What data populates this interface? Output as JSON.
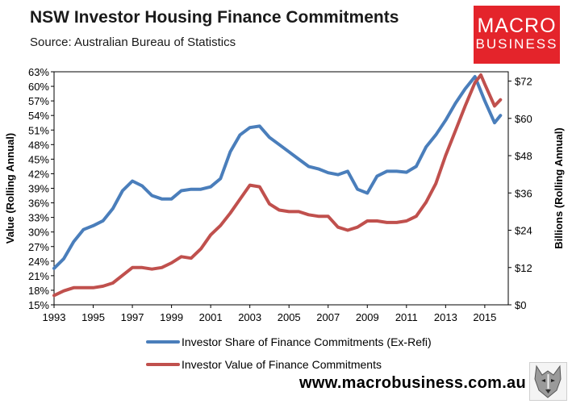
{
  "header": {
    "title": "NSW Investor Housing Finance Commitments",
    "subtitle": "Source: Australian Bureau of Statistics"
  },
  "logo": {
    "line1": "MACRO",
    "line2": "BUSINESS",
    "color": "#e4242b"
  },
  "footer": {
    "website": "www.macrobusiness.com.au"
  },
  "chart_data": {
    "type": "line",
    "title": "NSW Investor Housing Finance Commitments",
    "ylabel_left": "Value (Rolling Annual)",
    "ylabel_right": "Billions (Rolling Annual)",
    "xlim": [
      1993,
      2016.2
    ],
    "ylim_left": [
      15,
      63
    ],
    "ylim_right": [
      0,
      75
    ],
    "x_ticks": [
      1993,
      1995,
      1997,
      1999,
      2001,
      2003,
      2005,
      2007,
      2009,
      2011,
      2013,
      2015
    ],
    "x_tick_labels": [
      "1993",
      "1995",
      "1997",
      "1999",
      "2001",
      "2003",
      "2005",
      "2007",
      "2009",
      "2011",
      "2013",
      "2015"
    ],
    "y_left_ticks": [
      15,
      18,
      21,
      24,
      27,
      30,
      33,
      36,
      39,
      42,
      45,
      48,
      51,
      54,
      57,
      60,
      63
    ],
    "y_left_tick_labels": [
      "15%",
      "18%",
      "21%",
      "24%",
      "27%",
      "30%",
      "33%",
      "36%",
      "39%",
      "42%",
      "45%",
      "48%",
      "51%",
      "54%",
      "57%",
      "60%",
      "63%"
    ],
    "y_right_ticks": [
      0,
      12,
      24,
      36,
      48,
      60,
      72
    ],
    "y_right_tick_labels": [
      "$0",
      "$12",
      "$24",
      "$36",
      "$48",
      "$60",
      "$72"
    ],
    "legend_position": "bottom",
    "series": [
      {
        "name": "Investor Share of Finance Commitments (Ex-Refi)",
        "axis": "left",
        "color": "#4a7ebb",
        "x": [
          1993.0,
          1993.5,
          1994.0,
          1994.5,
          1995.0,
          1995.5,
          1996.0,
          1996.5,
          1997.0,
          1997.5,
          1998.0,
          1998.5,
          1999.0,
          1999.5,
          2000.0,
          2000.5,
          2001.0,
          2001.5,
          2002.0,
          2002.5,
          2003.0,
          2003.5,
          2004.0,
          2004.5,
          2005.0,
          2005.5,
          2006.0,
          2006.5,
          2007.0,
          2007.5,
          2008.0,
          2008.5,
          2009.0,
          2009.5,
          2010.0,
          2010.5,
          2011.0,
          2011.5,
          2012.0,
          2012.5,
          2013.0,
          2013.5,
          2014.0,
          2014.5,
          2015.0,
          2015.5,
          2015.8
        ],
        "y": [
          22.5,
          24.5,
          28.0,
          30.5,
          31.3,
          32.3,
          34.8,
          38.5,
          40.5,
          39.5,
          37.5,
          36.8,
          36.8,
          38.5,
          38.8,
          38.8,
          39.3,
          41.0,
          46.5,
          50.0,
          51.5,
          51.8,
          49.5,
          48.0,
          46.5,
          45.0,
          43.5,
          43.0,
          42.2,
          41.8,
          42.5,
          38.8,
          38.0,
          41.5,
          42.5,
          42.5,
          42.3,
          43.5,
          47.5,
          50.0,
          53.0,
          56.5,
          59.5,
          62.0,
          57.0,
          52.5,
          54.0
        ]
      },
      {
        "name": "Investor Value of Finance Commitments",
        "axis": "right",
        "color": "#c0504d",
        "x": [
          1993.0,
          1993.5,
          1994.0,
          1994.5,
          1995.0,
          1995.5,
          1996.0,
          1996.5,
          1997.0,
          1997.5,
          1998.0,
          1998.5,
          1999.0,
          1999.5,
          2000.0,
          2000.5,
          2001.0,
          2001.5,
          2002.0,
          2002.5,
          2003.0,
          2003.5,
          2004.0,
          2004.5,
          2005.0,
          2005.5,
          2006.0,
          2006.5,
          2007.0,
          2007.5,
          2008.0,
          2008.5,
          2009.0,
          2009.5,
          2010.0,
          2010.5,
          2011.0,
          2011.5,
          2012.0,
          2012.5,
          2013.0,
          2013.5,
          2014.0,
          2014.5,
          2014.8,
          2015.0,
          2015.5,
          2015.8
        ],
        "y": [
          3.0,
          4.5,
          5.5,
          5.5,
          5.5,
          6.0,
          7.0,
          9.5,
          12.0,
          12.0,
          11.5,
          12.0,
          13.5,
          15.5,
          15.0,
          18.0,
          22.5,
          25.5,
          29.5,
          34.0,
          38.5,
          38.0,
          32.5,
          30.5,
          30.0,
          30.0,
          29.0,
          28.5,
          28.5,
          25.0,
          24.0,
          25.0,
          27.0,
          27.0,
          26.5,
          26.5,
          27.0,
          28.5,
          33.0,
          39.0,
          48.0,
          56.0,
          64.0,
          71.5,
          74.0,
          71.0,
          64.0,
          66.0
        ]
      }
    ]
  }
}
